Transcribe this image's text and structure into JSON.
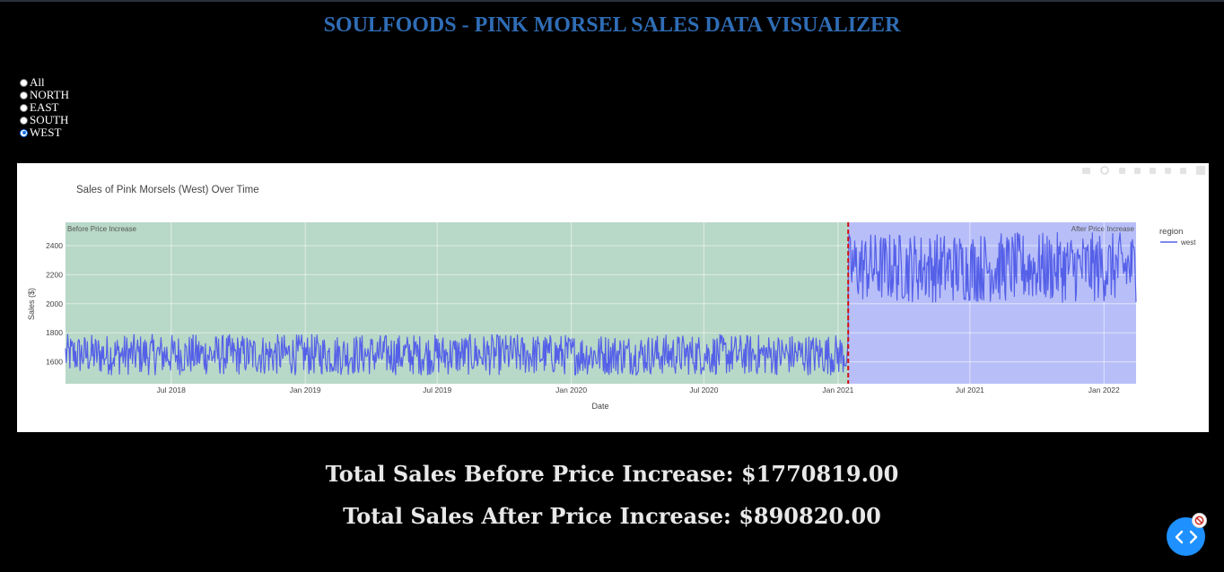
{
  "header": {
    "title": "SOULFOODS - PINK MORSEL SALES DATA VISUALIZER"
  },
  "region_filter": {
    "options": [
      "All",
      "NORTH",
      "EAST",
      "SOUTH",
      "WEST"
    ],
    "selected": "WEST"
  },
  "chart_data": {
    "type": "line",
    "title": "Sales of Pink Morsels (West) Over Time",
    "xlabel": "Date",
    "ylabel": "Sales ($)",
    "x_range": [
      "2018-02-06",
      "2022-02-14"
    ],
    "ylim": [
      1450,
      2560
    ],
    "y_ticks": [
      1600,
      1800,
      2000,
      2200,
      2400
    ],
    "x_ticks": [
      {
        "date": "2018-07-01",
        "label": "Jul 2018"
      },
      {
        "date": "2019-01-01",
        "label": "Jan 2019"
      },
      {
        "date": "2019-07-01",
        "label": "Jul 2019"
      },
      {
        "date": "2020-01-01",
        "label": "Jan 2020"
      },
      {
        "date": "2020-07-01",
        "label": "Jul 2020"
      },
      {
        "date": "2021-01-01",
        "label": "Jan 2021"
      },
      {
        "date": "2021-07-01",
        "label": "Jul 2021"
      },
      {
        "date": "2022-01-01",
        "label": "Jan 2022"
      }
    ],
    "price_increase_date": "2021-01-15",
    "regions_shaded": [
      {
        "label": "Before Price Increase",
        "from": "2018-02-06",
        "to": "2021-01-15",
        "color": "#b8d8c8"
      },
      {
        "label": "After Price Increase",
        "from": "2021-01-15",
        "to": "2022-02-14",
        "color": "#b8bff8"
      }
    ],
    "legend": {
      "title": "region",
      "position": "top-right"
    },
    "series": [
      {
        "name": "west",
        "color": "#5560e8",
        "segments": [
          {
            "from": "2018-02-06",
            "to": "2021-01-15",
            "min": 1510,
            "max": 1790
          },
          {
            "from": "2021-01-15",
            "to": "2022-02-14",
            "min": 2010,
            "max": 2490
          }
        ]
      }
    ]
  },
  "totals": {
    "before": "Total Sales Before Price Increase: $1770819.00",
    "after": "Total Sales After Price Increase: $890820.00"
  }
}
